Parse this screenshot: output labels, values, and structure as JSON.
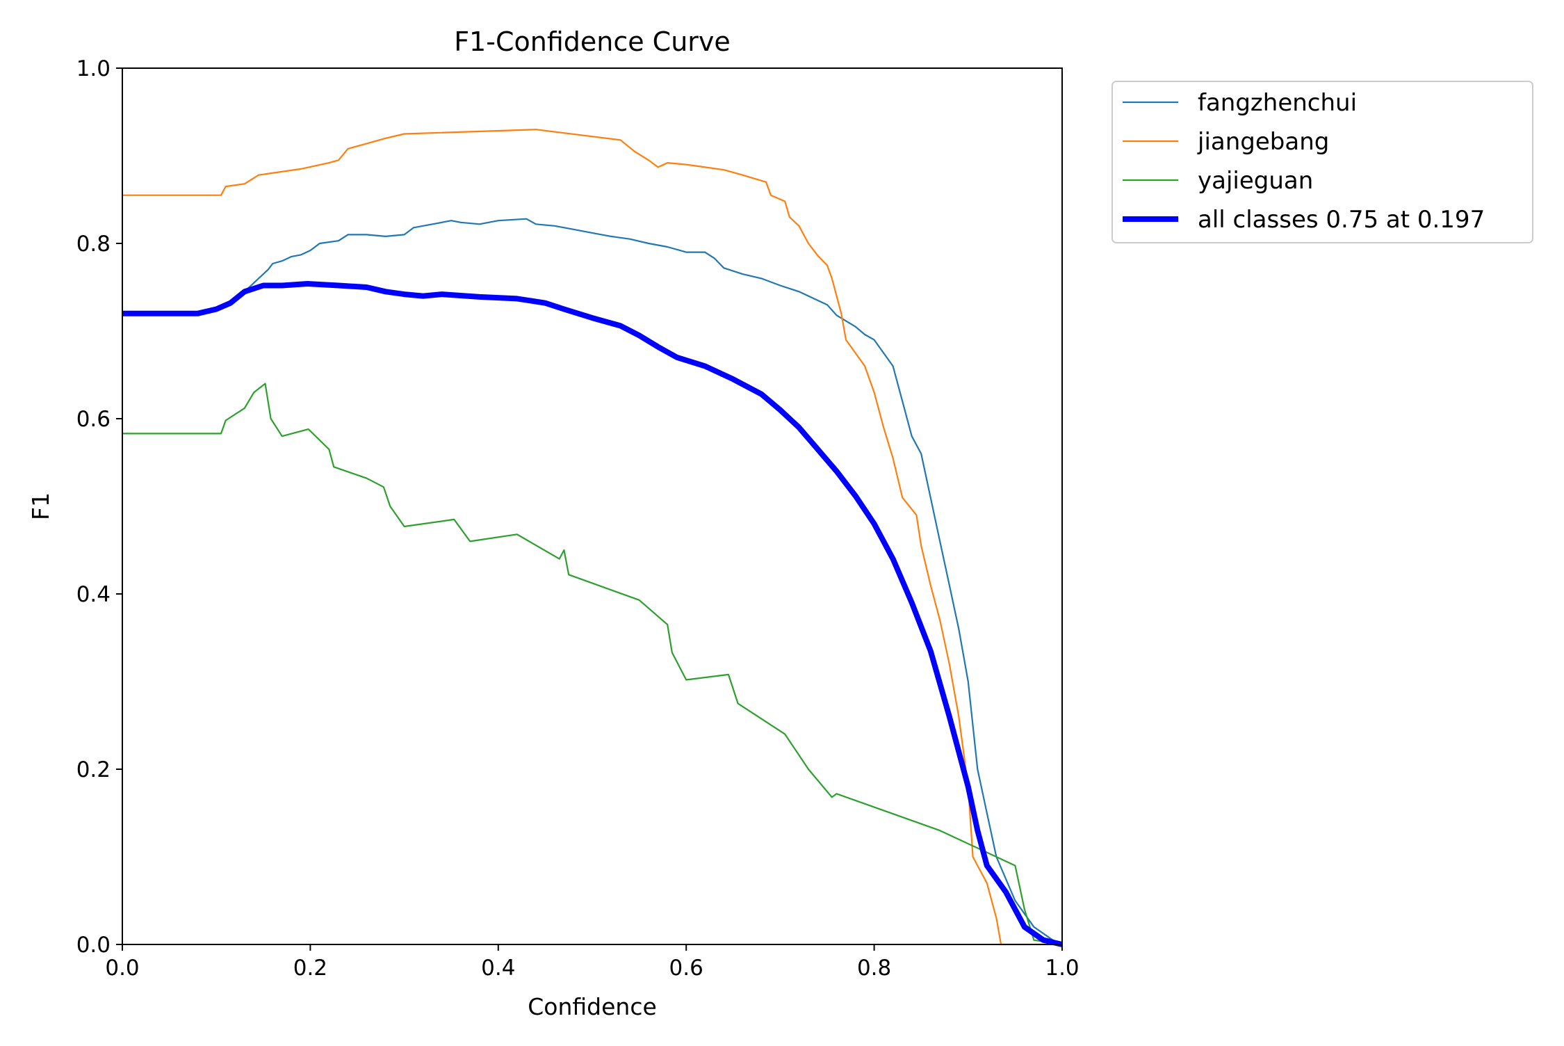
{
  "chart_data": {
    "type": "line",
    "title": "F1-Confidence Curve",
    "xlabel": "Confidence",
    "ylabel": "F1",
    "xlim": [
      0,
      1
    ],
    "ylim": [
      0,
      1
    ],
    "xticks": [
      "0.0",
      "0.2",
      "0.4",
      "0.6",
      "0.8",
      "1.0"
    ],
    "yticks": [
      "0.0",
      "0.2",
      "0.4",
      "0.6",
      "0.8",
      "1.0"
    ],
    "legend_position": "outside-upper-right",
    "series": [
      {
        "name": "fangzhenchui",
        "color": "#1f77b4",
        "width": "thin",
        "points": [
          [
            0,
            0.72
          ],
          [
            0.08,
            0.72
          ],
          [
            0.11,
            0.73
          ],
          [
            0.13,
            0.745
          ],
          [
            0.15,
            0.765
          ],
          [
            0.155,
            0.77
          ],
          [
            0.16,
            0.777
          ],
          [
            0.17,
            0.78
          ],
          [
            0.18,
            0.785
          ],
          [
            0.19,
            0.787
          ],
          [
            0.2,
            0.792
          ],
          [
            0.21,
            0.8
          ],
          [
            0.23,
            0.803
          ],
          [
            0.24,
            0.81
          ],
          [
            0.26,
            0.81
          ],
          [
            0.28,
            0.808
          ],
          [
            0.3,
            0.81
          ],
          [
            0.31,
            0.818
          ],
          [
            0.33,
            0.822
          ],
          [
            0.35,
            0.826
          ],
          [
            0.36,
            0.824
          ],
          [
            0.38,
            0.822
          ],
          [
            0.4,
            0.826
          ],
          [
            0.43,
            0.828
          ],
          [
            0.44,
            0.822
          ],
          [
            0.46,
            0.82
          ],
          [
            0.48,
            0.816
          ],
          [
            0.5,
            0.812
          ],
          [
            0.52,
            0.808
          ],
          [
            0.54,
            0.805
          ],
          [
            0.56,
            0.8
          ],
          [
            0.58,
            0.796
          ],
          [
            0.6,
            0.79
          ],
          [
            0.62,
            0.79
          ],
          [
            0.63,
            0.783
          ],
          [
            0.64,
            0.772
          ],
          [
            0.66,
            0.765
          ],
          [
            0.68,
            0.76
          ],
          [
            0.7,
            0.752
          ],
          [
            0.72,
            0.745
          ],
          [
            0.73,
            0.74
          ],
          [
            0.75,
            0.73
          ],
          [
            0.76,
            0.718
          ],
          [
            0.78,
            0.705
          ],
          [
            0.79,
            0.696
          ],
          [
            0.8,
            0.69
          ],
          [
            0.81,
            0.675
          ],
          [
            0.82,
            0.66
          ],
          [
            0.83,
            0.62
          ],
          [
            0.84,
            0.58
          ],
          [
            0.85,
            0.56
          ],
          [
            0.86,
            0.51
          ],
          [
            0.87,
            0.46
          ],
          [
            0.88,
            0.41
          ],
          [
            0.89,
            0.36
          ],
          [
            0.9,
            0.3
          ],
          [
            0.91,
            0.2
          ],
          [
            0.92,
            0.15
          ],
          [
            0.93,
            0.1
          ],
          [
            0.95,
            0.05
          ],
          [
            0.97,
            0.02
          ],
          [
            0.99,
            0.005
          ],
          [
            1,
            0
          ]
        ]
      },
      {
        "name": "jiangebang",
        "color": "#ff7f0e",
        "width": "thin",
        "points": [
          [
            0,
            0.855
          ],
          [
            0.105,
            0.855
          ],
          [
            0.11,
            0.865
          ],
          [
            0.13,
            0.868
          ],
          [
            0.145,
            0.878
          ],
          [
            0.19,
            0.885
          ],
          [
            0.22,
            0.892
          ],
          [
            0.23,
            0.895
          ],
          [
            0.24,
            0.908
          ],
          [
            0.26,
            0.914
          ],
          [
            0.28,
            0.92
          ],
          [
            0.3,
            0.925
          ],
          [
            0.44,
            0.93
          ],
          [
            0.53,
            0.918
          ],
          [
            0.545,
            0.905
          ],
          [
            0.56,
            0.895
          ],
          [
            0.57,
            0.887
          ],
          [
            0.58,
            0.892
          ],
          [
            0.6,
            0.89
          ],
          [
            0.64,
            0.884
          ],
          [
            0.66,
            0.878
          ],
          [
            0.685,
            0.87
          ],
          [
            0.69,
            0.855
          ],
          [
            0.705,
            0.848
          ],
          [
            0.71,
            0.83
          ],
          [
            0.72,
            0.82
          ],
          [
            0.73,
            0.8
          ],
          [
            0.74,
            0.786
          ],
          [
            0.75,
            0.775
          ],
          [
            0.755,
            0.76
          ],
          [
            0.765,
            0.72
          ],
          [
            0.77,
            0.69
          ],
          [
            0.78,
            0.675
          ],
          [
            0.79,
            0.66
          ],
          [
            0.8,
            0.63
          ],
          [
            0.81,
            0.59
          ],
          [
            0.82,
            0.555
          ],
          [
            0.83,
            0.51
          ],
          [
            0.845,
            0.49
          ],
          [
            0.85,
            0.455
          ],
          [
            0.86,
            0.41
          ],
          [
            0.87,
            0.37
          ],
          [
            0.88,
            0.32
          ],
          [
            0.89,
            0.26
          ],
          [
            0.9,
            0.18
          ],
          [
            0.905,
            0.1
          ],
          [
            0.91,
            0.09
          ],
          [
            0.92,
            0.07
          ],
          [
            0.93,
            0.03
          ],
          [
            0.935,
            0.0
          ],
          [
            0.97,
            0.0
          ],
          [
            1,
            0
          ]
        ]
      },
      {
        "name": "yajieguan",
        "color": "#2ca02c",
        "width": "thin",
        "points": [
          [
            0,
            0.583
          ],
          [
            0.105,
            0.583
          ],
          [
            0.11,
            0.598
          ],
          [
            0.13,
            0.612
          ],
          [
            0.14,
            0.63
          ],
          [
            0.152,
            0.64
          ],
          [
            0.158,
            0.6
          ],
          [
            0.17,
            0.58
          ],
          [
            0.198,
            0.588
          ],
          [
            0.22,
            0.565
          ],
          [
            0.225,
            0.545
          ],
          [
            0.26,
            0.532
          ],
          [
            0.278,
            0.522
          ],
          [
            0.285,
            0.5
          ],
          [
            0.3,
            0.477
          ],
          [
            0.353,
            0.485
          ],
          [
            0.37,
            0.46
          ],
          [
            0.42,
            0.468
          ],
          [
            0.465,
            0.44
          ],
          [
            0.47,
            0.45
          ],
          [
            0.475,
            0.422
          ],
          [
            0.55,
            0.393
          ],
          [
            0.58,
            0.365
          ],
          [
            0.585,
            0.333
          ],
          [
            0.6,
            0.302
          ],
          [
            0.645,
            0.308
          ],
          [
            0.655,
            0.275
          ],
          [
            0.705,
            0.24
          ],
          [
            0.73,
            0.2
          ],
          [
            0.755,
            0.168
          ],
          [
            0.76,
            0.172
          ],
          [
            0.87,
            0.13
          ],
          [
            0.95,
            0.09
          ],
          [
            0.96,
            0.04
          ],
          [
            0.97,
            0.005
          ],
          [
            1,
            0
          ]
        ]
      },
      {
        "name": "all classes 0.75 at 0.197",
        "color": "#0000ff",
        "width": "thick",
        "points": [
          [
            0,
            0.72
          ],
          [
            0.08,
            0.72
          ],
          [
            0.1,
            0.725
          ],
          [
            0.115,
            0.732
          ],
          [
            0.13,
            0.745
          ],
          [
            0.15,
            0.752
          ],
          [
            0.17,
            0.752
          ],
          [
            0.197,
            0.754
          ],
          [
            0.23,
            0.752
          ],
          [
            0.26,
            0.75
          ],
          [
            0.28,
            0.745
          ],
          [
            0.3,
            0.742
          ],
          [
            0.32,
            0.74
          ],
          [
            0.34,
            0.742
          ],
          [
            0.38,
            0.739
          ],
          [
            0.4,
            0.738
          ],
          [
            0.42,
            0.737
          ],
          [
            0.45,
            0.732
          ],
          [
            0.47,
            0.725
          ],
          [
            0.5,
            0.715
          ],
          [
            0.53,
            0.706
          ],
          [
            0.55,
            0.695
          ],
          [
            0.57,
            0.682
          ],
          [
            0.59,
            0.67
          ],
          [
            0.62,
            0.66
          ],
          [
            0.65,
            0.645
          ],
          [
            0.68,
            0.628
          ],
          [
            0.7,
            0.61
          ],
          [
            0.72,
            0.59
          ],
          [
            0.74,
            0.565
          ],
          [
            0.76,
            0.54
          ],
          [
            0.78,
            0.512
          ],
          [
            0.8,
            0.48
          ],
          [
            0.82,
            0.44
          ],
          [
            0.84,
            0.39
          ],
          [
            0.86,
            0.335
          ],
          [
            0.88,
            0.26
          ],
          [
            0.9,
            0.18
          ],
          [
            0.91,
            0.13
          ],
          [
            0.92,
            0.09
          ],
          [
            0.94,
            0.06
          ],
          [
            0.96,
            0.02
          ],
          [
            0.98,
            0.005
          ],
          [
            1,
            0
          ]
        ]
      }
    ]
  }
}
